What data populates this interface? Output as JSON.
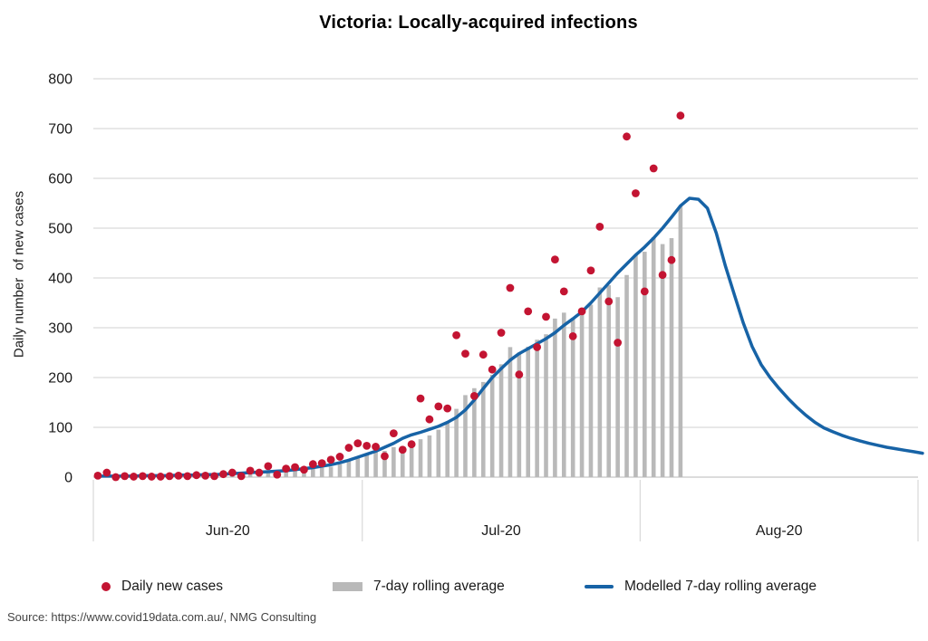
{
  "title": "Victoria: Locally-acquired infections",
  "source": "Source: https://www.covid19data.com.au/, NMG Consulting",
  "y_axis": {
    "label": "Daily number  of new cases",
    "ticks": [
      "800",
      "700",
      "600",
      "500",
      "400",
      "300",
      "200",
      "100",
      "0"
    ]
  },
  "x_axis": {
    "labels": [
      "Jun-20",
      "Jul-20",
      "Aug-20"
    ]
  },
  "legend": {
    "items": [
      {
        "label": "Daily new cases",
        "marker": "dot"
      },
      {
        "label": "7-day rolling average",
        "marker": "bar"
      },
      {
        "label": "Modelled 7-day rolling average",
        "marker": "line"
      }
    ]
  },
  "colors": {
    "dots": "#c31432",
    "bars": "#b9b9b9",
    "line": "#1763a6",
    "grid": "#d9d9d9",
    "axis": "#c6c6c6",
    "text": "#1a1a1a"
  },
  "chart_data": {
    "type": "combo",
    "title": "Victoria: Locally-acquired infections",
    "xlabel": "",
    "ylabel": "Daily number of new cases",
    "ylim": [
      0,
      800
    ],
    "ytick_step": 100,
    "grid": true,
    "legend_position": "bottom",
    "x_domain": {
      "days": 92,
      "month_boundaries": [
        0,
        30,
        61,
        92
      ],
      "month_labels": [
        "Jun-20",
        "Jul-20",
        "Aug-20"
      ],
      "note": "day 0 = 1 Jun 2020, day 91 = 31 Aug 2020"
    },
    "series": [
      {
        "name": "Daily new cases",
        "type": "scatter",
        "color": "#c31432",
        "start_day": 0,
        "values": [
          3,
          9,
          0,
          2,
          1,
          2,
          1,
          1,
          2,
          3,
          2,
          4,
          3,
          2,
          6,
          9,
          2,
          13,
          9,
          22,
          5,
          17,
          20,
          15,
          26,
          28,
          35,
          41,
          59,
          68,
          63,
          61,
          42,
          88,
          55,
          66,
          158,
          116,
          142,
          138,
          285,
          248,
          163,
          246,
          216,
          290,
          380,
          206,
          333,
          261,
          322,
          437,
          373,
          283,
          333,
          415,
          503,
          353,
          270,
          684,
          570,
          373,
          620,
          406,
          436,
          726
        ]
      },
      {
        "name": "7-day rolling average",
        "type": "bar",
        "color": "#b9b9b9",
        "start_day": 6,
        "values": [
          2.6,
          2.3,
          1.3,
          1.7,
          1.7,
          2.1,
          2.3,
          2.4,
          3.1,
          4.1,
          4.0,
          5.6,
          6.3,
          9.0,
          9.4,
          11.0,
          12.6,
          14.4,
          16.3,
          19.0,
          20.9,
          26.0,
          32.0,
          38.9,
          45.7,
          50.7,
          52.7,
          60.3,
          62.3,
          63.3,
          76.1,
          83.7,
          95.3,
          109.0,
          137.1,
          164.7,
          178.6,
          191.1,
          205.4,
          226.6,
          261.1,
          249.9,
          262.0,
          276.0,
          286.9,
          318.4,
          330.3,
          316.4,
          334.6,
          346.3,
          380.9,
          385.3,
          361.4,
          405.9,
          446.9,
          452.6,
          481.9,
          468.0,
          479.9,
          545.0
        ]
      },
      {
        "name": "Modelled 7-day rolling average",
        "type": "line",
        "color": "#1763a6",
        "start_day": 0,
        "values": [
          2,
          2,
          2,
          2,
          2,
          3,
          3,
          3,
          3,
          4,
          4,
          4,
          5,
          5,
          6,
          7,
          8,
          9,
          10,
          11,
          12,
          13,
          15,
          17,
          19,
          22,
          25,
          29,
          34,
          40,
          46,
          52,
          60,
          68,
          78,
          85,
          90,
          96,
          102,
          110,
          120,
          135,
          155,
          178,
          200,
          218,
          235,
          248,
          258,
          268,
          278,
          290,
          305,
          318,
          332,
          350,
          370,
          390,
          410,
          428,
          446,
          462,
          480,
          500,
          522,
          545,
          560,
          558,
          540,
          490,
          425,
          367,
          310,
          262,
          226,
          200,
          178,
          158,
          140,
          124,
          110,
          99,
          91,
          84,
          78,
          73,
          68,
          64,
          60,
          57,
          54,
          51,
          48
        ]
      }
    ]
  }
}
